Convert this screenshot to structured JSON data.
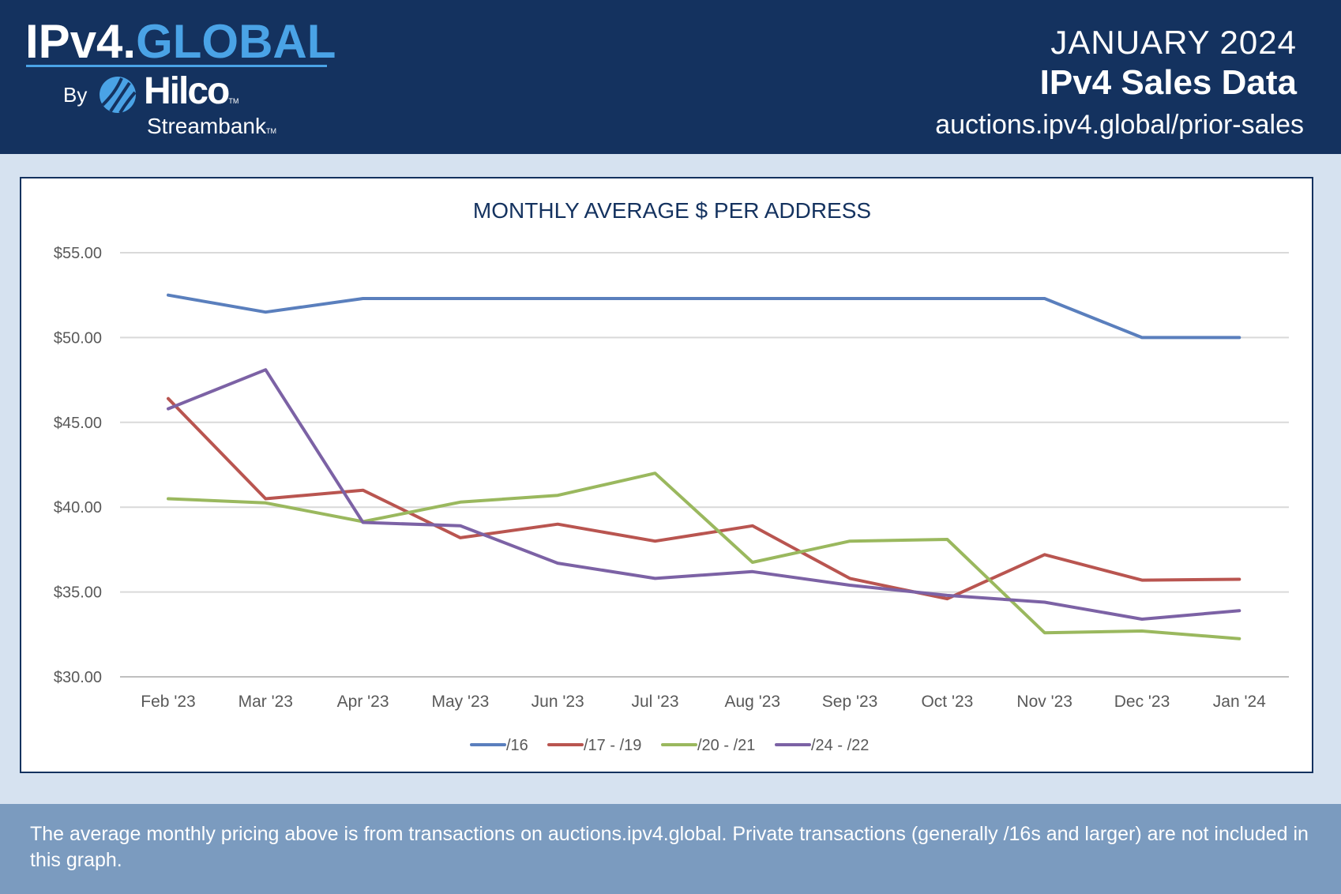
{
  "header": {
    "logo": {
      "part1": "IPv4.",
      "part2": "GLOBAL",
      "by": "By",
      "hilco": "Hilco",
      "streambank": "Streambank",
      "tm": "TM"
    },
    "month": "JANUARY 2024",
    "title": "IPv4 Sales Data",
    "url": "auctions.ipv4.global/prior-sales"
  },
  "footer": {
    "text": "The average monthly pricing above is from transactions on auctions.ipv4.global. Private transactions (generally /16s and larger) are not included in this graph."
  },
  "colors": {
    "header_bg": "#14325f",
    "accent": "#4aa3e6",
    "footer_bg": "#7b9bbf",
    "page_bg": "#d6e2f0"
  },
  "chart_data": {
    "type": "line",
    "title": "MONTHLY AVERAGE $ PER ADDRESS",
    "xlabel": "",
    "ylabel": "",
    "categories": [
      "Feb '23",
      "Mar '23",
      "Apr '23",
      "May '23",
      "Jun '23",
      "Jul '23",
      "Aug '23",
      "Sep '23",
      "Oct '23",
      "Nov '23",
      "Dec '23",
      "Jan '24"
    ],
    "ylim": [
      30,
      55
    ],
    "yticks": [
      {
        "value": 30,
        "label": "$30.00"
      },
      {
        "value": 35,
        "label": "$35.00"
      },
      {
        "value": 40,
        "label": "$40.00"
      },
      {
        "value": 45,
        "label": "$45.00"
      },
      {
        "value": 50,
        "label": "$50.00"
      },
      {
        "value": 55,
        "label": "$55.00"
      }
    ],
    "grid": true,
    "legend_position": "bottom",
    "series": [
      {
        "name": "/16",
        "color": "#5a7fbd",
        "values": [
          52.5,
          51.5,
          52.3,
          52.3,
          52.3,
          52.3,
          52.3,
          52.3,
          52.3,
          52.3,
          50.0,
          50.0
        ]
      },
      {
        "name": "/17 - /19",
        "color": "#b95550",
        "values": [
          46.4,
          40.5,
          41.0,
          38.2,
          39.0,
          38.0,
          38.9,
          35.8,
          34.6,
          37.2,
          35.7,
          35.75
        ]
      },
      {
        "name": "/20 - /21",
        "color": "#9ab85e",
        "values": [
          40.5,
          40.25,
          39.15,
          40.3,
          40.7,
          42.0,
          36.75,
          38.0,
          38.1,
          32.6,
          32.7,
          32.25
        ]
      },
      {
        "name": "/24 - /22",
        "color": "#7c62a5",
        "values": [
          45.8,
          48.1,
          39.1,
          38.9,
          36.7,
          35.8,
          36.2,
          35.4,
          34.8,
          34.4,
          33.4,
          33.9
        ]
      }
    ]
  }
}
